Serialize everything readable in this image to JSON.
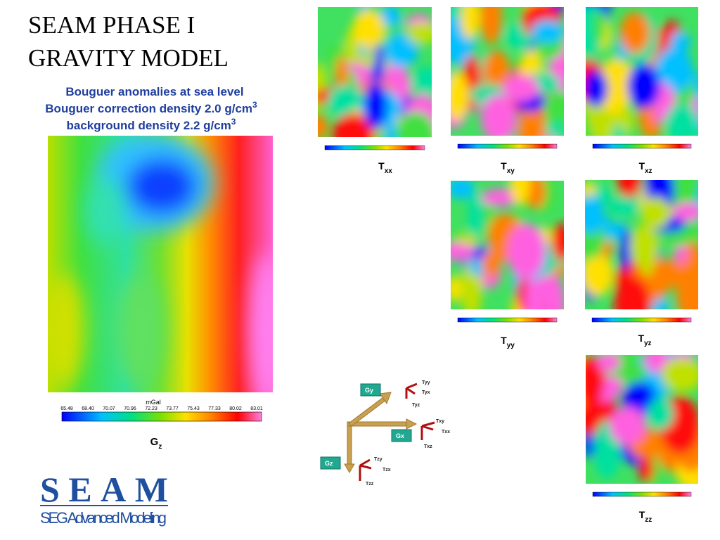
{
  "title": [
    "SEAM PHASE I",
    "GRAVITY MODEL"
  ],
  "subtitle": [
    {
      "text": "Bouguer anomalies at sea level"
    },
    {
      "text": "Bouguer correction density 2.0 g/cm",
      "sup": "3"
    },
    {
      "text": "background density 2.2 g/cm",
      "sup": "3"
    }
  ],
  "main_map": {
    "label": {
      "main": "G",
      "sub": "z"
    },
    "unit": "mGal",
    "scale": [
      "65.48",
      "68.40",
      "70.07",
      "70.96",
      "72.23",
      "73.77",
      "75.43",
      "77.33",
      "80.02",
      "83.01"
    ]
  },
  "tensor_maps": [
    {
      "main": "T",
      "sub": "xx"
    },
    {
      "main": "T",
      "sub": "xy"
    },
    {
      "main": "T",
      "sub": "xz"
    },
    {
      "main": "T",
      "sub": "yy"
    },
    {
      "main": "T",
      "sub": "yz"
    },
    {
      "main": "T",
      "sub": "zz"
    }
  ],
  "diagram": {
    "boxes": [
      "Gy",
      "Gx",
      "Gz"
    ],
    "components": [
      "Tyy",
      "Tyx",
      "Tyz",
      "Txy",
      "Txx",
      "Txz",
      "Tzy",
      "Tzx",
      "Tzz"
    ]
  },
  "logo": {
    "name": "SEAM",
    "tagline": "SEG Advanced Modeling"
  }
}
